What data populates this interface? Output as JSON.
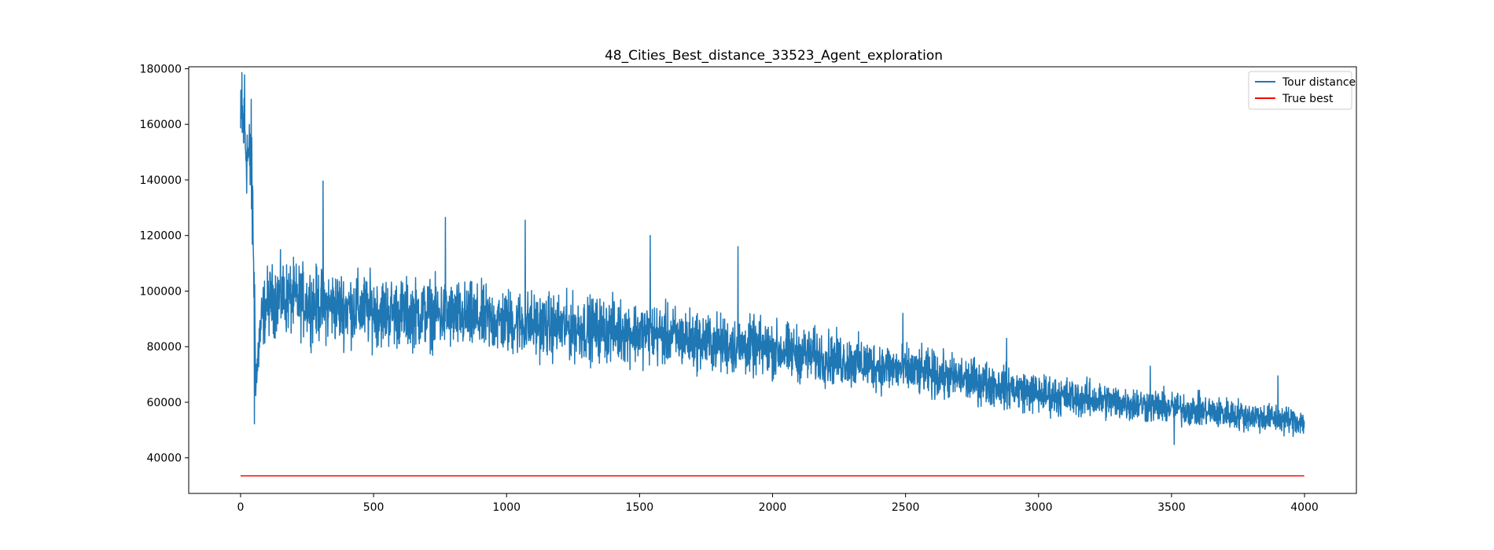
{
  "chart_data": {
    "type": "line",
    "title": "48_Cities_Best_distance_33523_Agent_exploration",
    "xlabel": "",
    "ylabel": "",
    "xlim": [
      -195,
      4195
    ],
    "ylim": [
      27200,
      180700
    ],
    "x_ticks": [
      0,
      500,
      1000,
      1500,
      2000,
      2500,
      3000,
      3500,
      4000
    ],
    "x_tick_labels": [
      "0",
      "500",
      "1000",
      "1500",
      "2000",
      "2500",
      "3000",
      "3500",
      "4000"
    ],
    "y_ticks": [
      40000,
      60000,
      80000,
      100000,
      120000,
      140000,
      160000,
      180000
    ],
    "y_tick_labels": [
      "40000",
      "60000",
      "80000",
      "100000",
      "120000",
      "140000",
      "160000",
      "180000"
    ],
    "grid": false,
    "legend_position": "top-right",
    "series": [
      {
        "name": "Tour distance",
        "color": "#1f77b4",
        "style": "noisy",
        "x_range": [
          0,
          3999
        ],
        "min": 44800,
        "max": 178600,
        "profile_x": [
          0,
          5,
          10,
          15,
          20,
          25,
          30,
          35,
          40,
          45,
          50,
          55,
          60,
          70,
          80,
          100,
          150,
          200,
          250,
          300,
          400,
          500,
          600,
          700,
          800,
          1000,
          1200,
          1400,
          1600,
          1800,
          2000,
          2200,
          2400,
          2600,
          2800,
          3000,
          3200,
          3400,
          3600,
          3800,
          3999
        ],
        "profile_mean": [
          157000,
          162000,
          160000,
          156000,
          152000,
          150000,
          148000,
          146000,
          140000,
          128000,
          110000,
          80000,
          68000,
          82000,
          90000,
          96000,
          98000,
          97000,
          96000,
          95000,
          94000,
          93000,
          92000,
          92000,
          91000,
          89000,
          87000,
          86000,
          84000,
          81000,
          79000,
          76000,
          73000,
          70000,
          67000,
          63000,
          61000,
          59000,
          57000,
          55000,
          53000
        ],
        "profile_spread": [
          12000,
          12000,
          12000,
          12000,
          12000,
          12000,
          12000,
          12000,
          12000,
          14000,
          16000,
          12000,
          8000,
          8000,
          8000,
          8500,
          9000,
          9000,
          9000,
          9000,
          9000,
          8800,
          8500,
          8500,
          8500,
          8200,
          8000,
          7800,
          7500,
          7200,
          7000,
          6600,
          6200,
          5800,
          5400,
          5000,
          4600,
          4300,
          4000,
          3800,
          3500
        ],
        "peaks": [
          {
            "x": 5,
            "y": 178600
          },
          {
            "x": 15,
            "y": 177800
          },
          {
            "x": 40,
            "y": 169000
          },
          {
            "x": 52,
            "y": 52200
          },
          {
            "x": 310,
            "y": 139600
          },
          {
            "x": 770,
            "y": 126500
          },
          {
            "x": 1070,
            "y": 125500
          },
          {
            "x": 1540,
            "y": 120000
          },
          {
            "x": 1870,
            "y": 116000
          },
          {
            "x": 2490,
            "y": 92000
          },
          {
            "x": 2880,
            "y": 83000
          },
          {
            "x": 3420,
            "y": 73000
          },
          {
            "x": 3510,
            "y": 44800
          },
          {
            "x": 3900,
            "y": 69500
          }
        ]
      },
      {
        "name": "True best",
        "color": "#ff0000",
        "style": "constant",
        "x": [
          0,
          3999
        ],
        "values": [
          33523,
          33523
        ]
      }
    ]
  }
}
